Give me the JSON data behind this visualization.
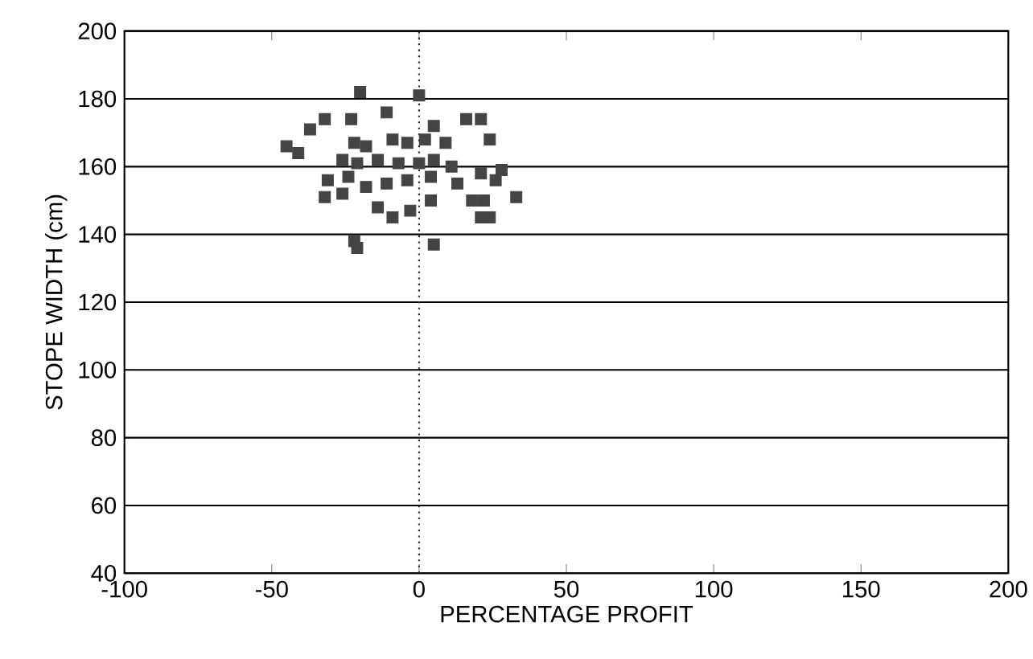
{
  "chart_data": {
    "type": "scatter",
    "xlabel": "PERCENTAGE PROFIT",
    "ylabel": "STOPE WIDTH (cm)",
    "xlim": [
      -100,
      200
    ],
    "ylim": [
      40,
      200
    ],
    "xticks": [
      -100,
      -50,
      0,
      50,
      100,
      150,
      200
    ],
    "yticks": [
      40,
      60,
      80,
      100,
      120,
      140,
      160,
      180,
      200
    ],
    "grid": "y",
    "marker": "square",
    "color": "#444444",
    "ref_lines": [
      {
        "axis": "x",
        "value": 0,
        "line_style": "dotted",
        "color": "#222222"
      }
    ],
    "x": [
      -20,
      0,
      -45,
      -41,
      -37,
      -32,
      -23,
      -11,
      5,
      16,
      21,
      24,
      -22,
      -18,
      -9,
      -4,
      2,
      9,
      -26,
      -21,
      -14,
      -7,
      0,
      5,
      11,
      21,
      28,
      26,
      -31,
      -24,
      -18,
      -11,
      -4,
      4,
      13,
      -32,
      -26,
      -14,
      -9,
      -3,
      4,
      18,
      22,
      33,
      21,
      24,
      -22,
      -21,
      5
    ],
    "values": [
      182,
      181,
      166,
      164,
      171,
      174,
      174,
      176,
      172,
      174,
      174,
      168,
      167,
      166,
      168,
      167,
      168,
      167,
      162,
      161,
      162,
      161,
      161,
      162,
      160,
      158,
      159,
      156,
      156,
      157,
      154,
      155,
      156,
      157,
      155,
      151,
      152,
      148,
      145,
      147,
      150,
      150,
      150,
      151,
      145,
      145,
      138,
      136,
      137
    ]
  }
}
